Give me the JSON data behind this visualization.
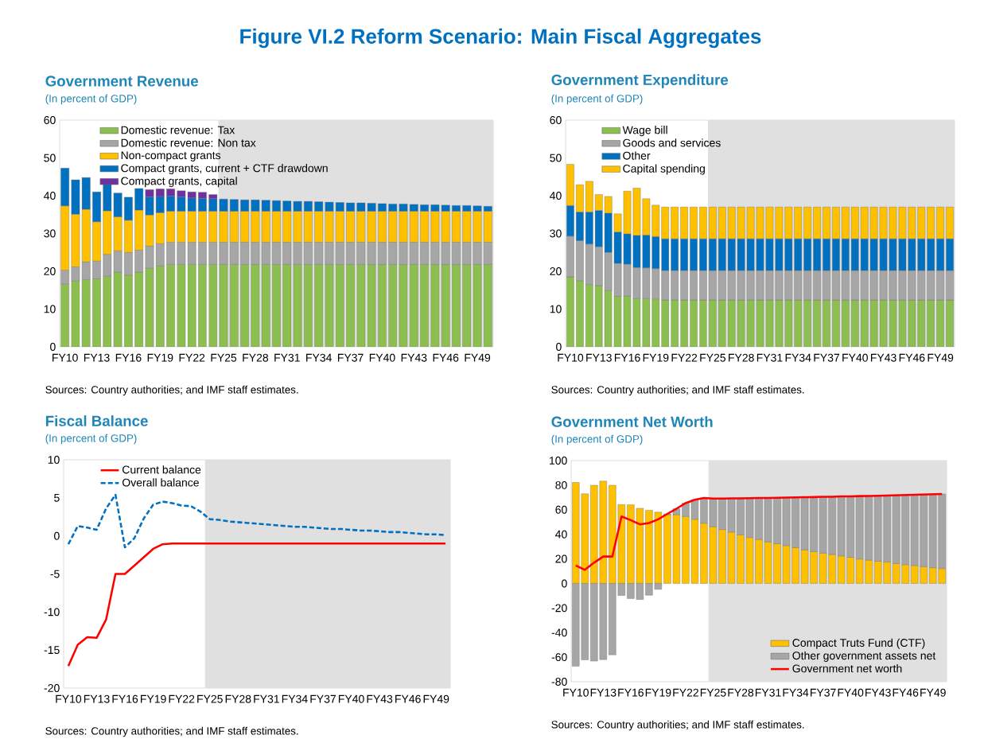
{
  "chart_data": [
    {
      "type": "other",
      "title": "Figure VI.2 Reform Scenario: Main Fiscal Aggregates"
    },
    {
      "type": "bar",
      "stacked": true,
      "title": "Government Revenue",
      "subtitle": "(In percent of GDP)",
      "annotations": [
        "Sources: Country authorities; and IMF staff estimates."
      ],
      "legend": "top left",
      "categories": [
        "FY10",
        null,
        null,
        "FY13",
        null,
        null,
        "FY16",
        null,
        null,
        "FY19",
        null,
        null,
        "FY22",
        null,
        null,
        "FY25",
        null,
        null,
        "FY28",
        null,
        null,
        "FY31",
        null,
        null,
        "FY34",
        null,
        null,
        "FY37",
        null,
        null,
        "FY40",
        null,
        null,
        "FY43",
        null,
        null,
        "FY46",
        null,
        null,
        "FY49",
        null
      ],
      "ylim": [
        0,
        60
      ],
      "yticks": [
        0,
        10,
        20,
        30,
        40,
        50,
        60
      ],
      "series": [
        {
          "name": "Domestic revenue: Tax",
          "color": "#8cbf4f",
          "values": [
            16.6,
            17.4,
            17.8,
            18.0,
            18.7,
            19.8,
            19.0,
            19.8,
            20.8,
            21.4,
            21.8,
            21.8,
            21.8,
            21.8,
            21.8,
            21.8,
            21.8,
            21.8,
            21.8,
            21.8,
            21.8,
            21.8,
            21.8,
            21.8,
            21.8,
            21.8,
            21.8,
            21.8,
            21.8,
            21.8,
            21.8,
            21.8,
            21.8,
            21.8,
            21.8,
            21.8,
            21.8,
            21.8,
            21.8,
            21.8,
            21.8
          ]
        },
        {
          "name": "Domestic revenue: Non tax",
          "color": "#a6a6a6",
          "values": [
            3.7,
            3.8,
            4.7,
            4.7,
            5.8,
            5.6,
            6.0,
            5.8,
            5.9,
            5.9,
            5.9,
            5.9,
            5.9,
            5.9,
            5.9,
            5.9,
            5.9,
            5.9,
            5.9,
            5.9,
            5.9,
            5.9,
            5.9,
            5.9,
            5.9,
            5.9,
            5.9,
            5.9,
            5.9,
            5.9,
            5.9,
            5.9,
            5.9,
            5.9,
            5.9,
            5.9,
            5.9,
            5.9,
            5.9,
            5.9,
            5.9
          ]
        },
        {
          "name": "Non-compact grants",
          "color": "#ffc000",
          "values": [
            17.0,
            13.9,
            13.9,
            10.4,
            11.5,
            9.0,
            8.5,
            10.6,
            8.2,
            8.2,
            8.2,
            8.2,
            8.2,
            8.2,
            8.2,
            8.2,
            8.2,
            8.2,
            8.2,
            8.2,
            8.2,
            8.2,
            8.2,
            8.2,
            8.2,
            8.2,
            8.2,
            8.2,
            8.2,
            8.2,
            8.2,
            8.2,
            8.2,
            8.2,
            8.2,
            8.2,
            8.2,
            8.2,
            8.2,
            8.2,
            8.2
          ]
        },
        {
          "name": "Compact grants, current + CTF drawdown",
          "color": "#0070c0",
          "values": [
            10.0,
            9.1,
            8.4,
            7.9,
            7.2,
            6.3,
            6.1,
            5.7,
            4.8,
            4.3,
            4.0,
            3.8,
            3.5,
            3.4,
            3.3,
            3.2,
            3.1,
            3.0,
            3.0,
            2.9,
            2.8,
            2.7,
            2.6,
            2.6,
            2.5,
            2.4,
            2.3,
            2.2,
            2.2,
            2.1,
            2.0,
            1.9,
            1.9,
            1.8,
            1.7,
            1.7,
            1.6,
            1.5,
            1.5,
            1.4,
            1.3
          ]
        },
        {
          "name": "Compact grants, capital",
          "color": "#7030a0",
          "values": [
            null,
            null,
            null,
            null,
            null,
            null,
            null,
            null,
            1.9,
            2.0,
            1.9,
            1.6,
            1.6,
            1.6,
            1.1,
            null,
            null,
            null,
            null,
            null,
            null,
            null,
            null,
            null,
            null,
            null,
            null,
            null,
            null,
            null,
            null,
            null,
            null,
            null,
            null,
            null,
            null,
            null,
            null,
            null,
            null
          ]
        }
      ]
    },
    {
      "type": "bar",
      "stacked": true,
      "title": "Government Expenditure",
      "subtitle": "(In percent of GDP)",
      "annotations": [
        "Sources: Country authorities; and IMF staff estimates."
      ],
      "legend": "top left",
      "categories": [
        "FY10",
        null,
        null,
        "FY13",
        null,
        null,
        "FY16",
        null,
        null,
        "FY19",
        null,
        null,
        "FY22",
        null,
        null,
        "FY25",
        null,
        null,
        "FY28",
        null,
        null,
        "FY31",
        null,
        null,
        "FY34",
        null,
        null,
        "FY37",
        null,
        null,
        "FY40",
        null,
        null,
        "FY43",
        null,
        null,
        "FY46",
        null,
        null,
        "FY49",
        null
      ],
      "ylim": [
        0,
        60
      ],
      "yticks": [
        0,
        10,
        20,
        30,
        40,
        50,
        60
      ],
      "series": [
        {
          "name": "Wage bill",
          "color": "#8cbf4f",
          "values": [
            18.5,
            17.5,
            16.5,
            16.2,
            14.9,
            13.4,
            13.4,
            12.8,
            12.8,
            12.7,
            12.4,
            12.4,
            12.4,
            12.4,
            12.4,
            12.4,
            12.4,
            12.4,
            12.4,
            12.4,
            12.4,
            12.4,
            12.4,
            12.4,
            12.4,
            12.4,
            12.4,
            12.4,
            12.4,
            12.4,
            12.4,
            12.4,
            12.4,
            12.4,
            12.4,
            12.4,
            12.4,
            12.4,
            12.4,
            12.4,
            12.4
          ]
        },
        {
          "name": "Goods and services",
          "color": "#a6a6a6",
          "values": [
            10.8,
            10.6,
            10.7,
            10.3,
            10.1,
            8.7,
            8.5,
            8.2,
            8.1,
            8.0,
            7.8,
            7.8,
            7.8,
            7.8,
            7.8,
            7.8,
            7.8,
            7.8,
            7.8,
            7.8,
            7.8,
            7.8,
            7.8,
            7.8,
            7.8,
            7.8,
            7.8,
            7.8,
            7.8,
            7.8,
            7.8,
            7.8,
            7.8,
            7.8,
            7.8,
            7.8,
            7.8,
            7.8,
            7.8,
            7.8,
            7.8
          ]
        },
        {
          "name": "Other",
          "color": "#0070c0",
          "values": [
            8.1,
            7.6,
            8.5,
            9.6,
            10.4,
            8.3,
            8.0,
            8.5,
            8.7,
            8.5,
            8.4,
            8.4,
            8.4,
            8.4,
            8.4,
            8.4,
            8.4,
            8.4,
            8.4,
            8.4,
            8.4,
            8.4,
            8.4,
            8.4,
            8.4,
            8.4,
            8.4,
            8.4,
            8.4,
            8.4,
            8.4,
            8.4,
            8.4,
            8.4,
            8.4,
            8.4,
            8.4,
            8.4,
            8.4,
            8.4,
            8.4
          ]
        },
        {
          "name": "Capital spending",
          "color": "#ffc000",
          "values": [
            10.9,
            7.2,
            8.1,
            4.2,
            4.4,
            4.8,
            11.3,
            12.5,
            9.6,
            8.3,
            8.4,
            8.4,
            8.4,
            8.4,
            8.4,
            8.4,
            8.4,
            8.4,
            8.4,
            8.4,
            8.4,
            8.4,
            8.4,
            8.4,
            8.4,
            8.4,
            8.4,
            8.4,
            8.4,
            8.4,
            8.4,
            8.4,
            8.4,
            8.4,
            8.4,
            8.4,
            8.4,
            8.4,
            8.4,
            8.4,
            8.4
          ]
        }
      ]
    },
    {
      "type": "line",
      "title": "Fiscal Balance",
      "subtitle": "(In percent of GDP)",
      "annotations": [
        "Sources: Country authorities; and IMF staff estimates."
      ],
      "legend": "top left",
      "categories": [
        "FY10",
        null,
        null,
        "FY13",
        null,
        null,
        "FY16",
        null,
        null,
        "FY19",
        null,
        null,
        "FY22",
        null,
        null,
        "FY25",
        null,
        null,
        "FY28",
        null,
        null,
        "FY31",
        null,
        null,
        "FY34",
        null,
        null,
        "FY37",
        null,
        null,
        "FY40",
        null,
        null,
        "FY43",
        null,
        null,
        "FY46",
        null,
        null,
        "FY49",
        null
      ],
      "ylim": [
        -20,
        10
      ],
      "yticks": [
        -20,
        -15,
        -10,
        -5,
        0,
        5,
        10
      ],
      "series": [
        {
          "name": "Current balance",
          "color": "#ff0000",
          "line_style": "solid",
          "values": [
            -17.1,
            -14.3,
            -13.3,
            -13.4,
            -11.0,
            -5.0,
            -5.0,
            -3.9,
            -2.8,
            -1.7,
            -1.1,
            -1.0,
            -1.0,
            -1.0,
            -1.0,
            -1.0,
            -1.0,
            -1.0,
            -1.0,
            -1.0,
            -1.0,
            -1.0,
            -1.0,
            -1.0,
            -1.0,
            -1.0,
            -1.0,
            -1.0,
            -1.0,
            -1.0,
            -1.0,
            -1.0,
            -1.0,
            -1.0,
            -1.0,
            -1.0,
            -1.0,
            -1.0,
            -1.0,
            -1.0,
            -1.0
          ]
        },
        {
          "name": "Overall balance",
          "color": "#0070c0",
          "line_style": "dashed",
          "values": [
            -1.1,
            1.3,
            1.1,
            0.8,
            3.6,
            5.4,
            -1.5,
            -0.3,
            2.3,
            4.1,
            4.5,
            4.3,
            4.0,
            3.9,
            3.2,
            2.2,
            2.1,
            1.9,
            1.8,
            1.7,
            1.6,
            1.5,
            1.4,
            1.3,
            1.2,
            1.2,
            1.1,
            1.0,
            0.9,
            0.9,
            0.8,
            0.7,
            0.7,
            0.6,
            0.5,
            0.5,
            0.4,
            0.3,
            0.2,
            0.2,
            0.1
          ]
        }
      ]
    },
    {
      "type": "bar",
      "stacked": true,
      "title": "Government Net Worth",
      "subtitle": "(In percent of GDP)",
      "annotations": [
        "Sources: Country authorities; and IMF staff estimates."
      ],
      "legend": "bottom right",
      "categories": [
        "FY10",
        null,
        null,
        "FY13",
        null,
        null,
        "FY16",
        null,
        null,
        "FY19",
        null,
        null,
        "FY22",
        null,
        null,
        "FY25",
        null,
        null,
        "FY28",
        null,
        null,
        "FY31",
        null,
        null,
        "FY34",
        null,
        null,
        "FY37",
        null,
        null,
        "FY40",
        null,
        null,
        "FY43",
        null,
        null,
        "FY46",
        null,
        null,
        "FY49",
        null
      ],
      "ylim": [
        -80,
        100
      ],
      "yticks": [
        -80,
        -60,
        -40,
        -20,
        0,
        20,
        40,
        60,
        80,
        100
      ],
      "series": [
        {
          "name": "Compact Truts Fund (CTF)",
          "color": "#ffc000",
          "values": [
            82.2,
            73.0,
            79.9,
            83.3,
            79.9,
            64.2,
            64.0,
            61.2,
            59.6,
            58.0,
            56.0,
            55.9,
            54.5,
            52.2,
            49.0,
            46.2,
            43.9,
            41.8,
            39.5,
            37.4,
            35.8,
            33.8,
            32.4,
            30.8,
            29.1,
            27.3,
            25.9,
            24.7,
            23.6,
            22.4,
            21.3,
            19.9,
            19.0,
            18.1,
            17.4,
            16.2,
            15.3,
            14.6,
            13.7,
            12.8,
            12.1
          ]
        },
        {
          "name": "Other government assets net",
          "color": "#a6a6a6",
          "values": [
            -67.3,
            -62.2,
            -63.2,
            -62.0,
            -58.1,
            -9.8,
            -12.3,
            -13.1,
            -9.6,
            -4.8,
            0.6,
            4.9,
            10.9,
            15.9,
            20.5,
            22.9,
            25.2,
            27.4,
            29.8,
            32.0,
            33.7,
            35.8,
            37.4,
            39.1,
            40.9,
            42.9,
            44.4,
            45.8,
            47.0,
            48.4,
            49.6,
            51.2,
            52.2,
            53.3,
            54.2,
            55.6,
            56.7,
            57.6,
            58.7,
            59.8,
            60.7
          ]
        },
        {
          "name": "Government net worth",
          "type": "line",
          "color": "#ff0000",
          "line_style": "solid",
          "values": [
            14.6,
            11.1,
            16.9,
            21.9,
            21.9,
            54.5,
            51.5,
            48.1,
            49.2,
            52.2,
            56.6,
            60.8,
            65.4,
            68.1,
            69.5,
            69.1,
            69.1,
            69.2,
            69.3,
            69.4,
            69.5,
            69.6,
            69.8,
            69.9,
            70.0,
            70.2,
            70.3,
            70.5,
            70.6,
            70.8,
            70.9,
            71.1,
            71.2,
            71.4,
            71.6,
            71.8,
            72.0,
            72.2,
            72.4,
            72.6,
            72.8
          ]
        }
      ]
    }
  ]
}
